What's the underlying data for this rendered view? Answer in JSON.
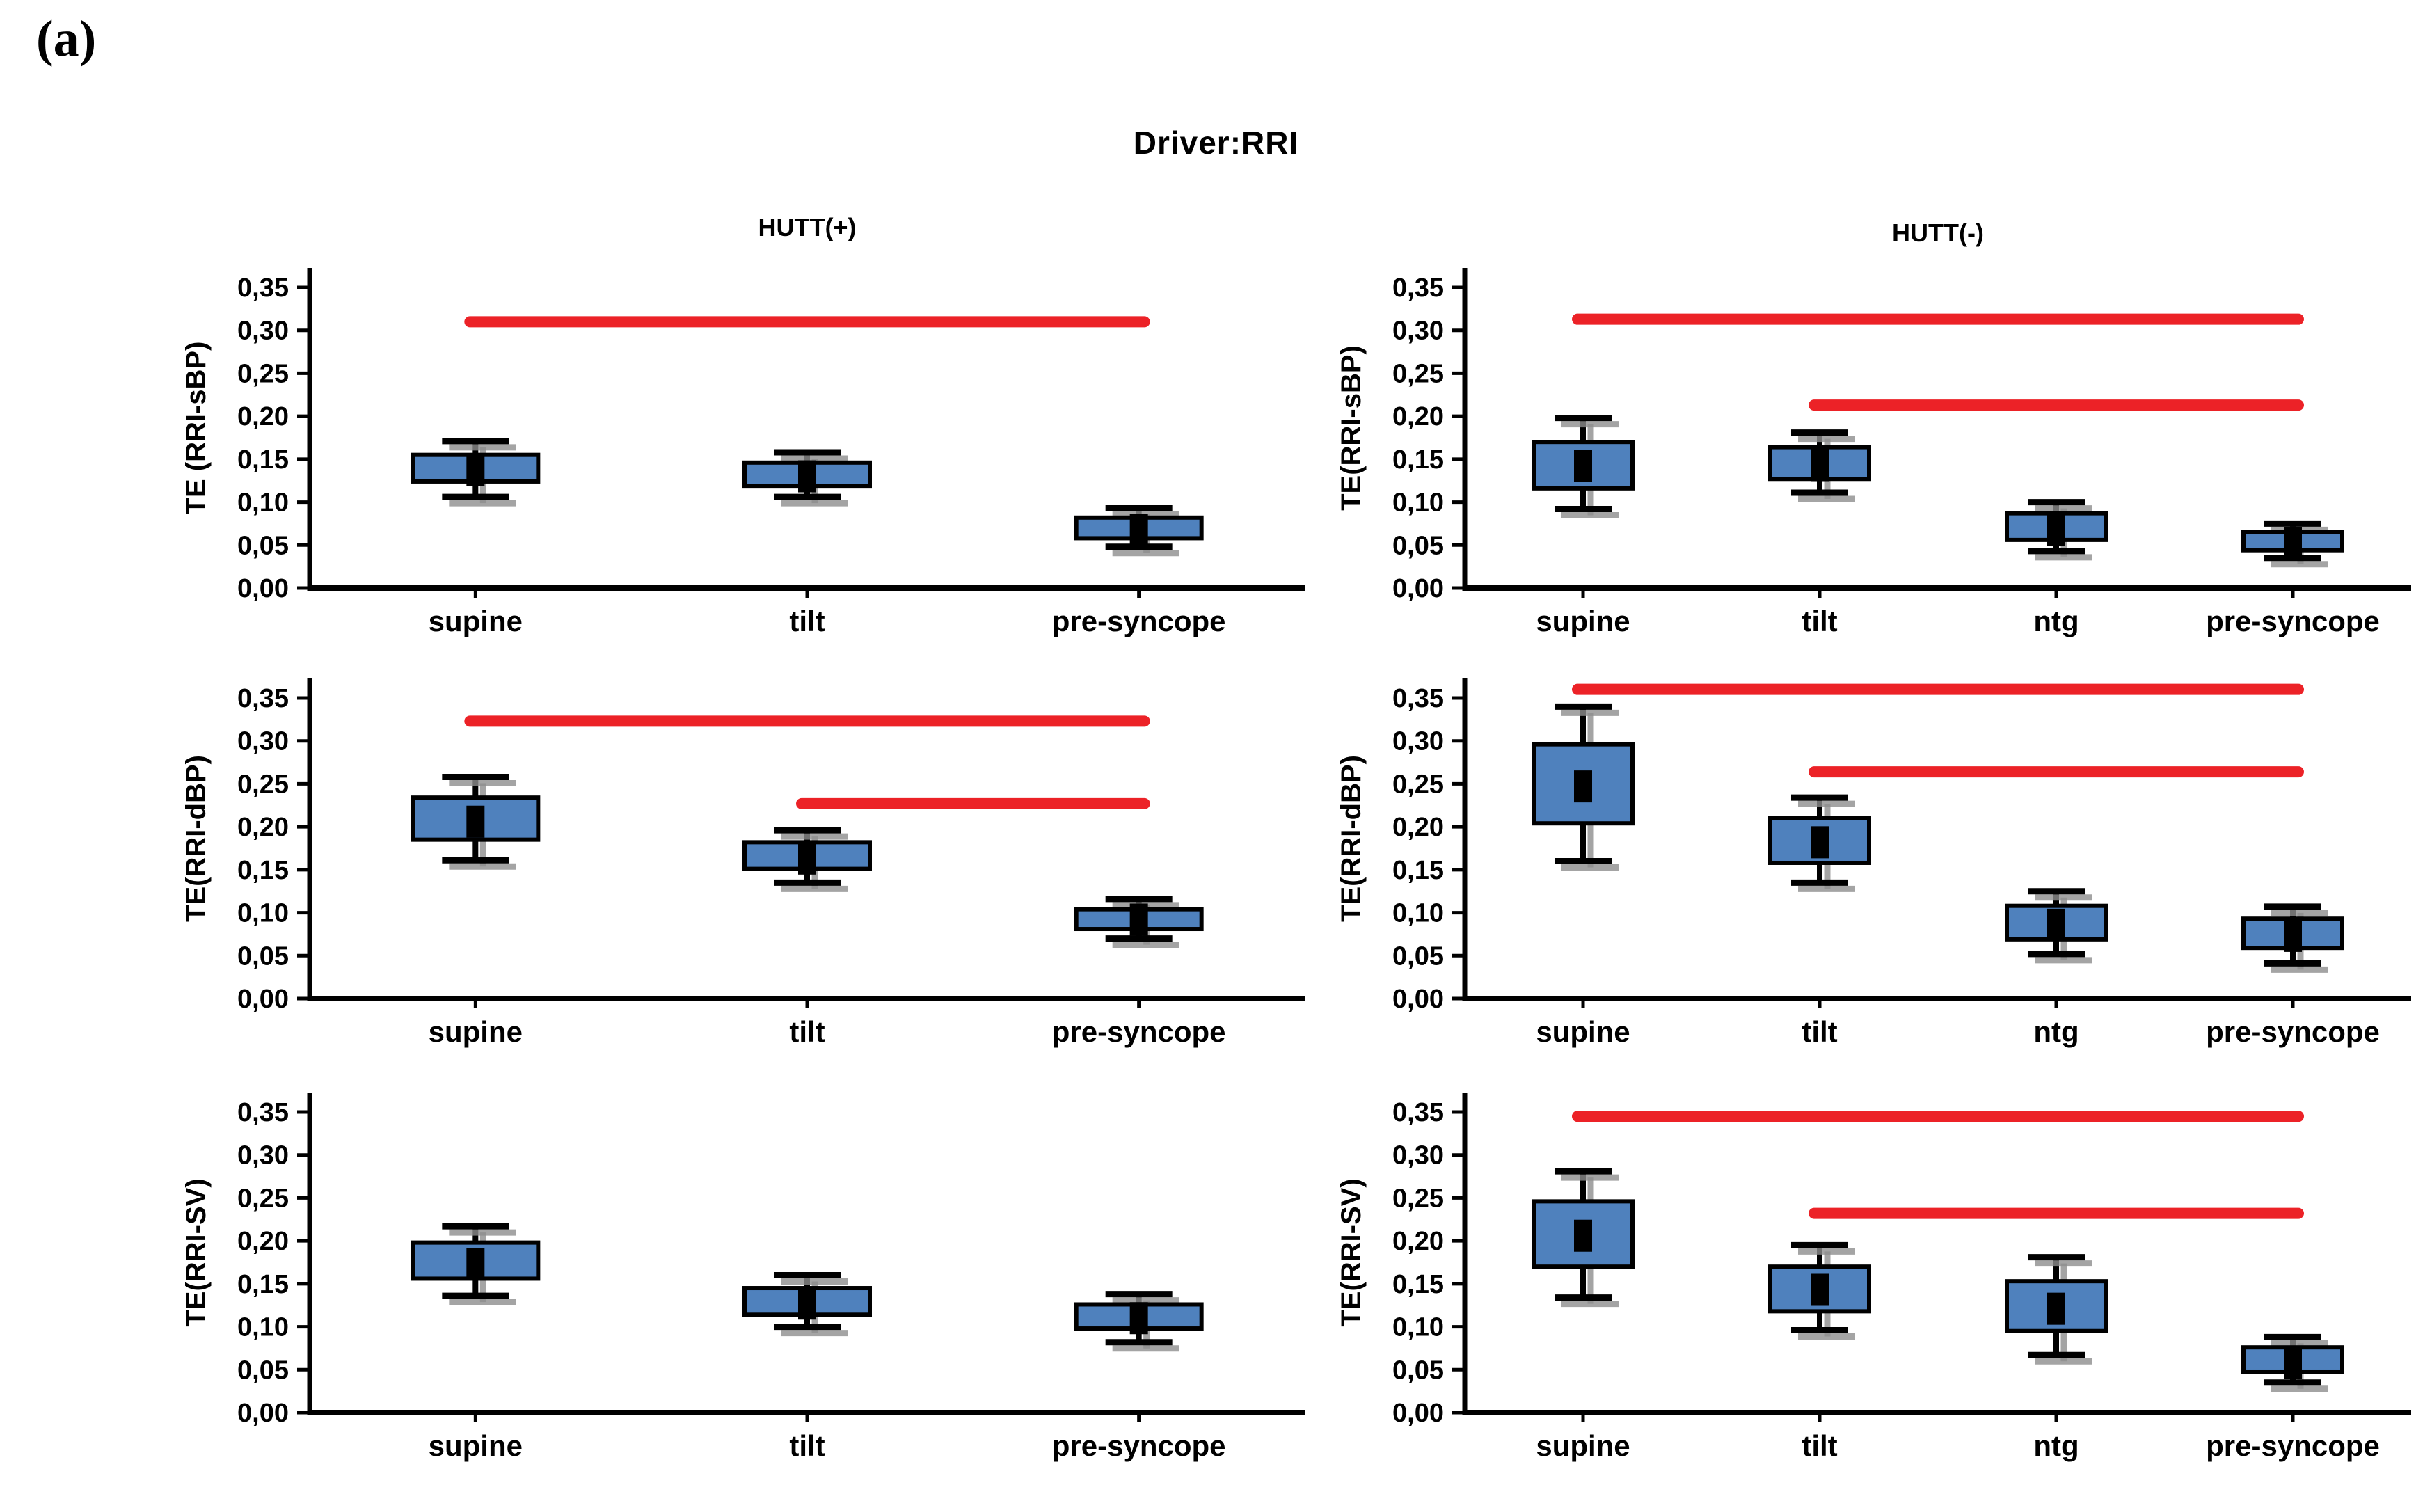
{
  "figure_label": "(a)",
  "title": "Driver:RRI",
  "columns": [
    {
      "title": "HUTT(+)"
    },
    {
      "title": "HUTT(-)"
    }
  ],
  "colors": {
    "box_fill": "#4f81bd",
    "box_border": "#000000",
    "whisker": "#000000",
    "whisker_shadow": "#8e8e8e",
    "mean_marker": "#000000",
    "significance_line": "#ec2227",
    "axis": "#000000",
    "text": "#000000"
  },
  "chart_data": {
    "type": "boxplot-grid",
    "ylim": [
      0,
      0.35
    ],
    "ytick_step": 0.05,
    "ytick_labels": [
      "0,00",
      "0,05",
      "0,10",
      "0,15",
      "0,20",
      "0,25",
      "0,30",
      "0,35"
    ],
    "grid": "off",
    "panels": [
      {
        "row": 0,
        "col": 0,
        "column_title": "HUTT(+)",
        "ylabel": "TE (RRI-sBP)",
        "categories": [
          "supine",
          "tilt",
          "pre-syncope"
        ],
        "boxes": [
          {
            "category": "supine",
            "whisker_low": 0.106,
            "q1": 0.124,
            "mean": 0.137,
            "q3": 0.155,
            "whisker_high": 0.171
          },
          {
            "category": "tilt",
            "whisker_low": 0.106,
            "q1": 0.119,
            "mean": 0.13,
            "q3": 0.146,
            "whisker_high": 0.158
          },
          {
            "category": "pre-syncope",
            "whisker_low": 0.048,
            "q1": 0.058,
            "mean": 0.068,
            "q3": 0.082,
            "whisker_high": 0.093
          }
        ],
        "significance_lines": [
          {
            "y": 0.31,
            "from": "supine",
            "to": "pre-syncope"
          }
        ]
      },
      {
        "row": 0,
        "col": 1,
        "column_title": "HUTT(-)",
        "ylabel": "TE(RRI-sBP)",
        "categories": [
          "supine",
          "tilt",
          "ntg",
          "pre-syncope"
        ],
        "boxes": [
          {
            "category": "supine",
            "whisker_low": 0.092,
            "q1": 0.116,
            "mean": 0.142,
            "q3": 0.17,
            "whisker_high": 0.198
          },
          {
            "category": "tilt",
            "whisker_low": 0.111,
            "q1": 0.127,
            "mean": 0.143,
            "q3": 0.164,
            "whisker_high": 0.181
          },
          {
            "category": "ntg",
            "whisker_low": 0.043,
            "q1": 0.056,
            "mean": 0.068,
            "q3": 0.087,
            "whisker_high": 0.1
          },
          {
            "category": "pre-syncope",
            "whisker_low": 0.035,
            "q1": 0.044,
            "mean": 0.052,
            "q3": 0.065,
            "whisker_high": 0.075
          }
        ],
        "significance_lines": [
          {
            "y": 0.313,
            "from": "supine",
            "to": "pre-syncope"
          },
          {
            "y": 0.213,
            "from": "tilt",
            "to": "pre-syncope"
          }
        ]
      },
      {
        "row": 1,
        "col": 0,
        "column_title": "HUTT(+)",
        "ylabel": "TE(RRI-dBP)",
        "categories": [
          "supine",
          "tilt",
          "pre-syncope"
        ],
        "boxes": [
          {
            "category": "supine",
            "whisker_low": 0.161,
            "q1": 0.185,
            "mean": 0.206,
            "q3": 0.234,
            "whisker_high": 0.258
          },
          {
            "category": "tilt",
            "whisker_low": 0.135,
            "q1": 0.151,
            "mean": 0.163,
            "q3": 0.182,
            "whisker_high": 0.196
          },
          {
            "category": "pre-syncope",
            "whisker_low": 0.07,
            "q1": 0.081,
            "mean": 0.092,
            "q3": 0.104,
            "whisker_high": 0.116
          }
        ],
        "significance_lines": [
          {
            "y": 0.323,
            "from": "supine",
            "to": "pre-syncope"
          },
          {
            "y": 0.227,
            "from": "tilt",
            "to": "pre-syncope"
          }
        ]
      },
      {
        "row": 1,
        "col": 1,
        "column_title": "HUTT(-)",
        "ylabel": "TE(RRI-dBP)",
        "categories": [
          "supine",
          "tilt",
          "ntg",
          "pre-syncope"
        ],
        "boxes": [
          {
            "category": "supine",
            "whisker_low": 0.16,
            "q1": 0.204,
            "mean": 0.247,
            "q3": 0.296,
            "whisker_high": 0.34
          },
          {
            "category": "tilt",
            "whisker_low": 0.135,
            "q1": 0.158,
            "mean": 0.182,
            "q3": 0.21,
            "whisker_high": 0.234
          },
          {
            "category": "ntg",
            "whisker_low": 0.052,
            "q1": 0.069,
            "mean": 0.086,
            "q3": 0.108,
            "whisker_high": 0.125
          },
          {
            "category": "pre-syncope",
            "whisker_low": 0.041,
            "q1": 0.059,
            "mean": 0.073,
            "q3": 0.093,
            "whisker_high": 0.107
          }
        ],
        "significance_lines": [
          {
            "y": 0.36,
            "from": "supine",
            "to": "pre-syncope"
          },
          {
            "y": 0.264,
            "from": "tilt",
            "to": "pre-syncope"
          }
        ]
      },
      {
        "row": 2,
        "col": 0,
        "column_title": "HUTT(+)",
        "ylabel": "TE(RRI-SV)",
        "categories": [
          "supine",
          "tilt",
          "pre-syncope"
        ],
        "boxes": [
          {
            "category": "supine",
            "whisker_low": 0.136,
            "q1": 0.156,
            "mean": 0.173,
            "q3": 0.198,
            "whisker_high": 0.217
          },
          {
            "category": "tilt",
            "whisker_low": 0.1,
            "q1": 0.114,
            "mean": 0.127,
            "q3": 0.145,
            "whisker_high": 0.16
          },
          {
            "category": "pre-syncope",
            "whisker_low": 0.082,
            "q1": 0.098,
            "mean": 0.11,
            "q3": 0.126,
            "whisker_high": 0.138
          }
        ],
        "significance_lines": []
      },
      {
        "row": 2,
        "col": 1,
        "column_title": "HUTT(-)",
        "ylabel": "TE(RRI-SV)",
        "categories": [
          "supine",
          "tilt",
          "ntg",
          "pre-syncope"
        ],
        "boxes": [
          {
            "category": "supine",
            "whisker_low": 0.134,
            "q1": 0.17,
            "mean": 0.206,
            "q3": 0.246,
            "whisker_high": 0.281
          },
          {
            "category": "tilt",
            "whisker_low": 0.096,
            "q1": 0.118,
            "mean": 0.143,
            "q3": 0.17,
            "whisker_high": 0.195
          },
          {
            "category": "ntg",
            "whisker_low": 0.067,
            "q1": 0.095,
            "mean": 0.121,
            "q3": 0.153,
            "whisker_high": 0.181
          },
          {
            "category": "pre-syncope",
            "whisker_low": 0.035,
            "q1": 0.047,
            "mean": 0.058,
            "q3": 0.076,
            "whisker_high": 0.088
          }
        ],
        "significance_lines": [
          {
            "y": 0.345,
            "from": "supine",
            "to": "pre-syncope"
          },
          {
            "y": 0.232,
            "from": "tilt",
            "to": "pre-syncope"
          }
        ]
      }
    ]
  }
}
